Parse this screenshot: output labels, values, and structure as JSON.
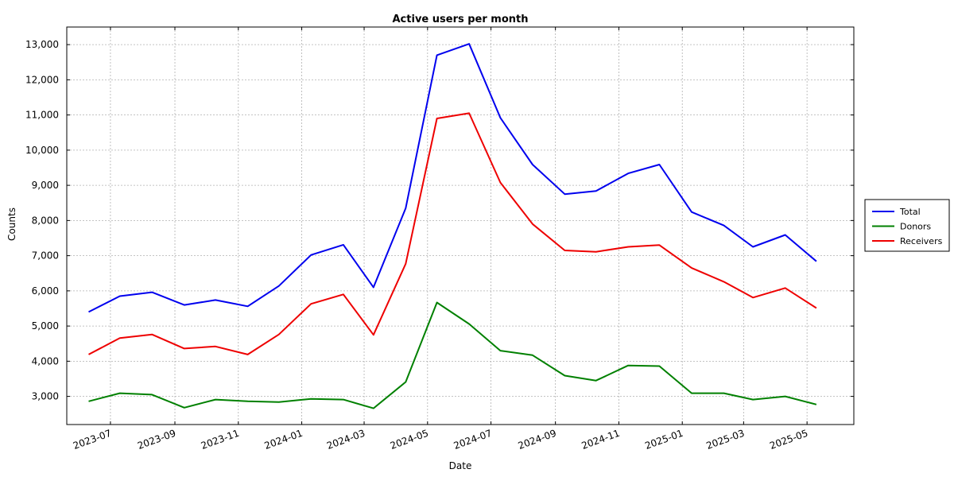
{
  "chart_data": {
    "type": "line",
    "title": "Active users per month",
    "xlabel": "Date",
    "ylabel": "Counts",
    "ylim": [
      2200,
      13500
    ],
    "yticks": [
      3000,
      4000,
      5000,
      6000,
      7000,
      8000,
      9000,
      10000,
      11000,
      12000,
      13000
    ],
    "ytick_labels": [
      "3,000",
      "4,000",
      "5,000",
      "6,000",
      "7,000",
      "8,000",
      "9,000",
      "10,000",
      "11,000",
      "12,000",
      "13,000"
    ],
    "xlim": [
      "2023-05-20",
      "2025-06-15"
    ],
    "xticks": [
      "2023-07-01",
      "2023-09-01",
      "2023-11-01",
      "2024-01-01",
      "2024-03-01",
      "2024-05-01",
      "2024-07-01",
      "2024-09-01",
      "2024-11-01",
      "2025-01-01",
      "2025-03-01",
      "2025-05-01"
    ],
    "xtick_labels": [
      "2023-07",
      "2023-09",
      "2023-11",
      "2024-01",
      "2024-03",
      "2024-05",
      "2024-07",
      "2024-09",
      "2024-11",
      "2025-01",
      "2025-03",
      "2025-05"
    ],
    "x": [
      "2023-06-10",
      "2023-07-10",
      "2023-08-10",
      "2023-09-10",
      "2023-10-10",
      "2023-11-10",
      "2023-12-10",
      "2024-01-10",
      "2024-02-10",
      "2024-03-10",
      "2024-04-10",
      "2024-05-10",
      "2024-06-10",
      "2024-07-10",
      "2024-08-10",
      "2024-09-10",
      "2024-10-10",
      "2024-11-10",
      "2024-12-10",
      "2025-01-10",
      "2025-02-10",
      "2025-03-10",
      "2025-04-10",
      "2025-05-10"
    ],
    "grid": true,
    "legend_position": "right",
    "series": [
      {
        "name": "Total",
        "color": "#0000ee",
        "values": [
          5400,
          5850,
          5960,
          5600,
          5740,
          5560,
          6140,
          7020,
          7310,
          6100,
          8350,
          12700,
          13020,
          10920,
          9590,
          8750,
          8840,
          9340,
          9590,
          8240,
          7860,
          7250,
          7590,
          6840
        ]
      },
      {
        "name": "Donors",
        "color": "#008000",
        "values": [
          2860,
          3090,
          3050,
          2680,
          2910,
          2860,
          2840,
          2930,
          2910,
          2660,
          3410,
          5670,
          5060,
          4300,
          4170,
          3590,
          3450,
          3880,
          3860,
          3090,
          3090,
          2910,
          3000,
          2770
        ]
      },
      {
        "name": "Receivers",
        "color": "#ee0000",
        "values": [
          4190,
          4660,
          4760,
          4360,
          4420,
          4190,
          4760,
          5630,
          5900,
          4750,
          6770,
          10900,
          11050,
          9080,
          7900,
          7150,
          7110,
          7250,
          7300,
          6650,
          6260,
          5810,
          6080,
          5510
        ]
      }
    ]
  }
}
